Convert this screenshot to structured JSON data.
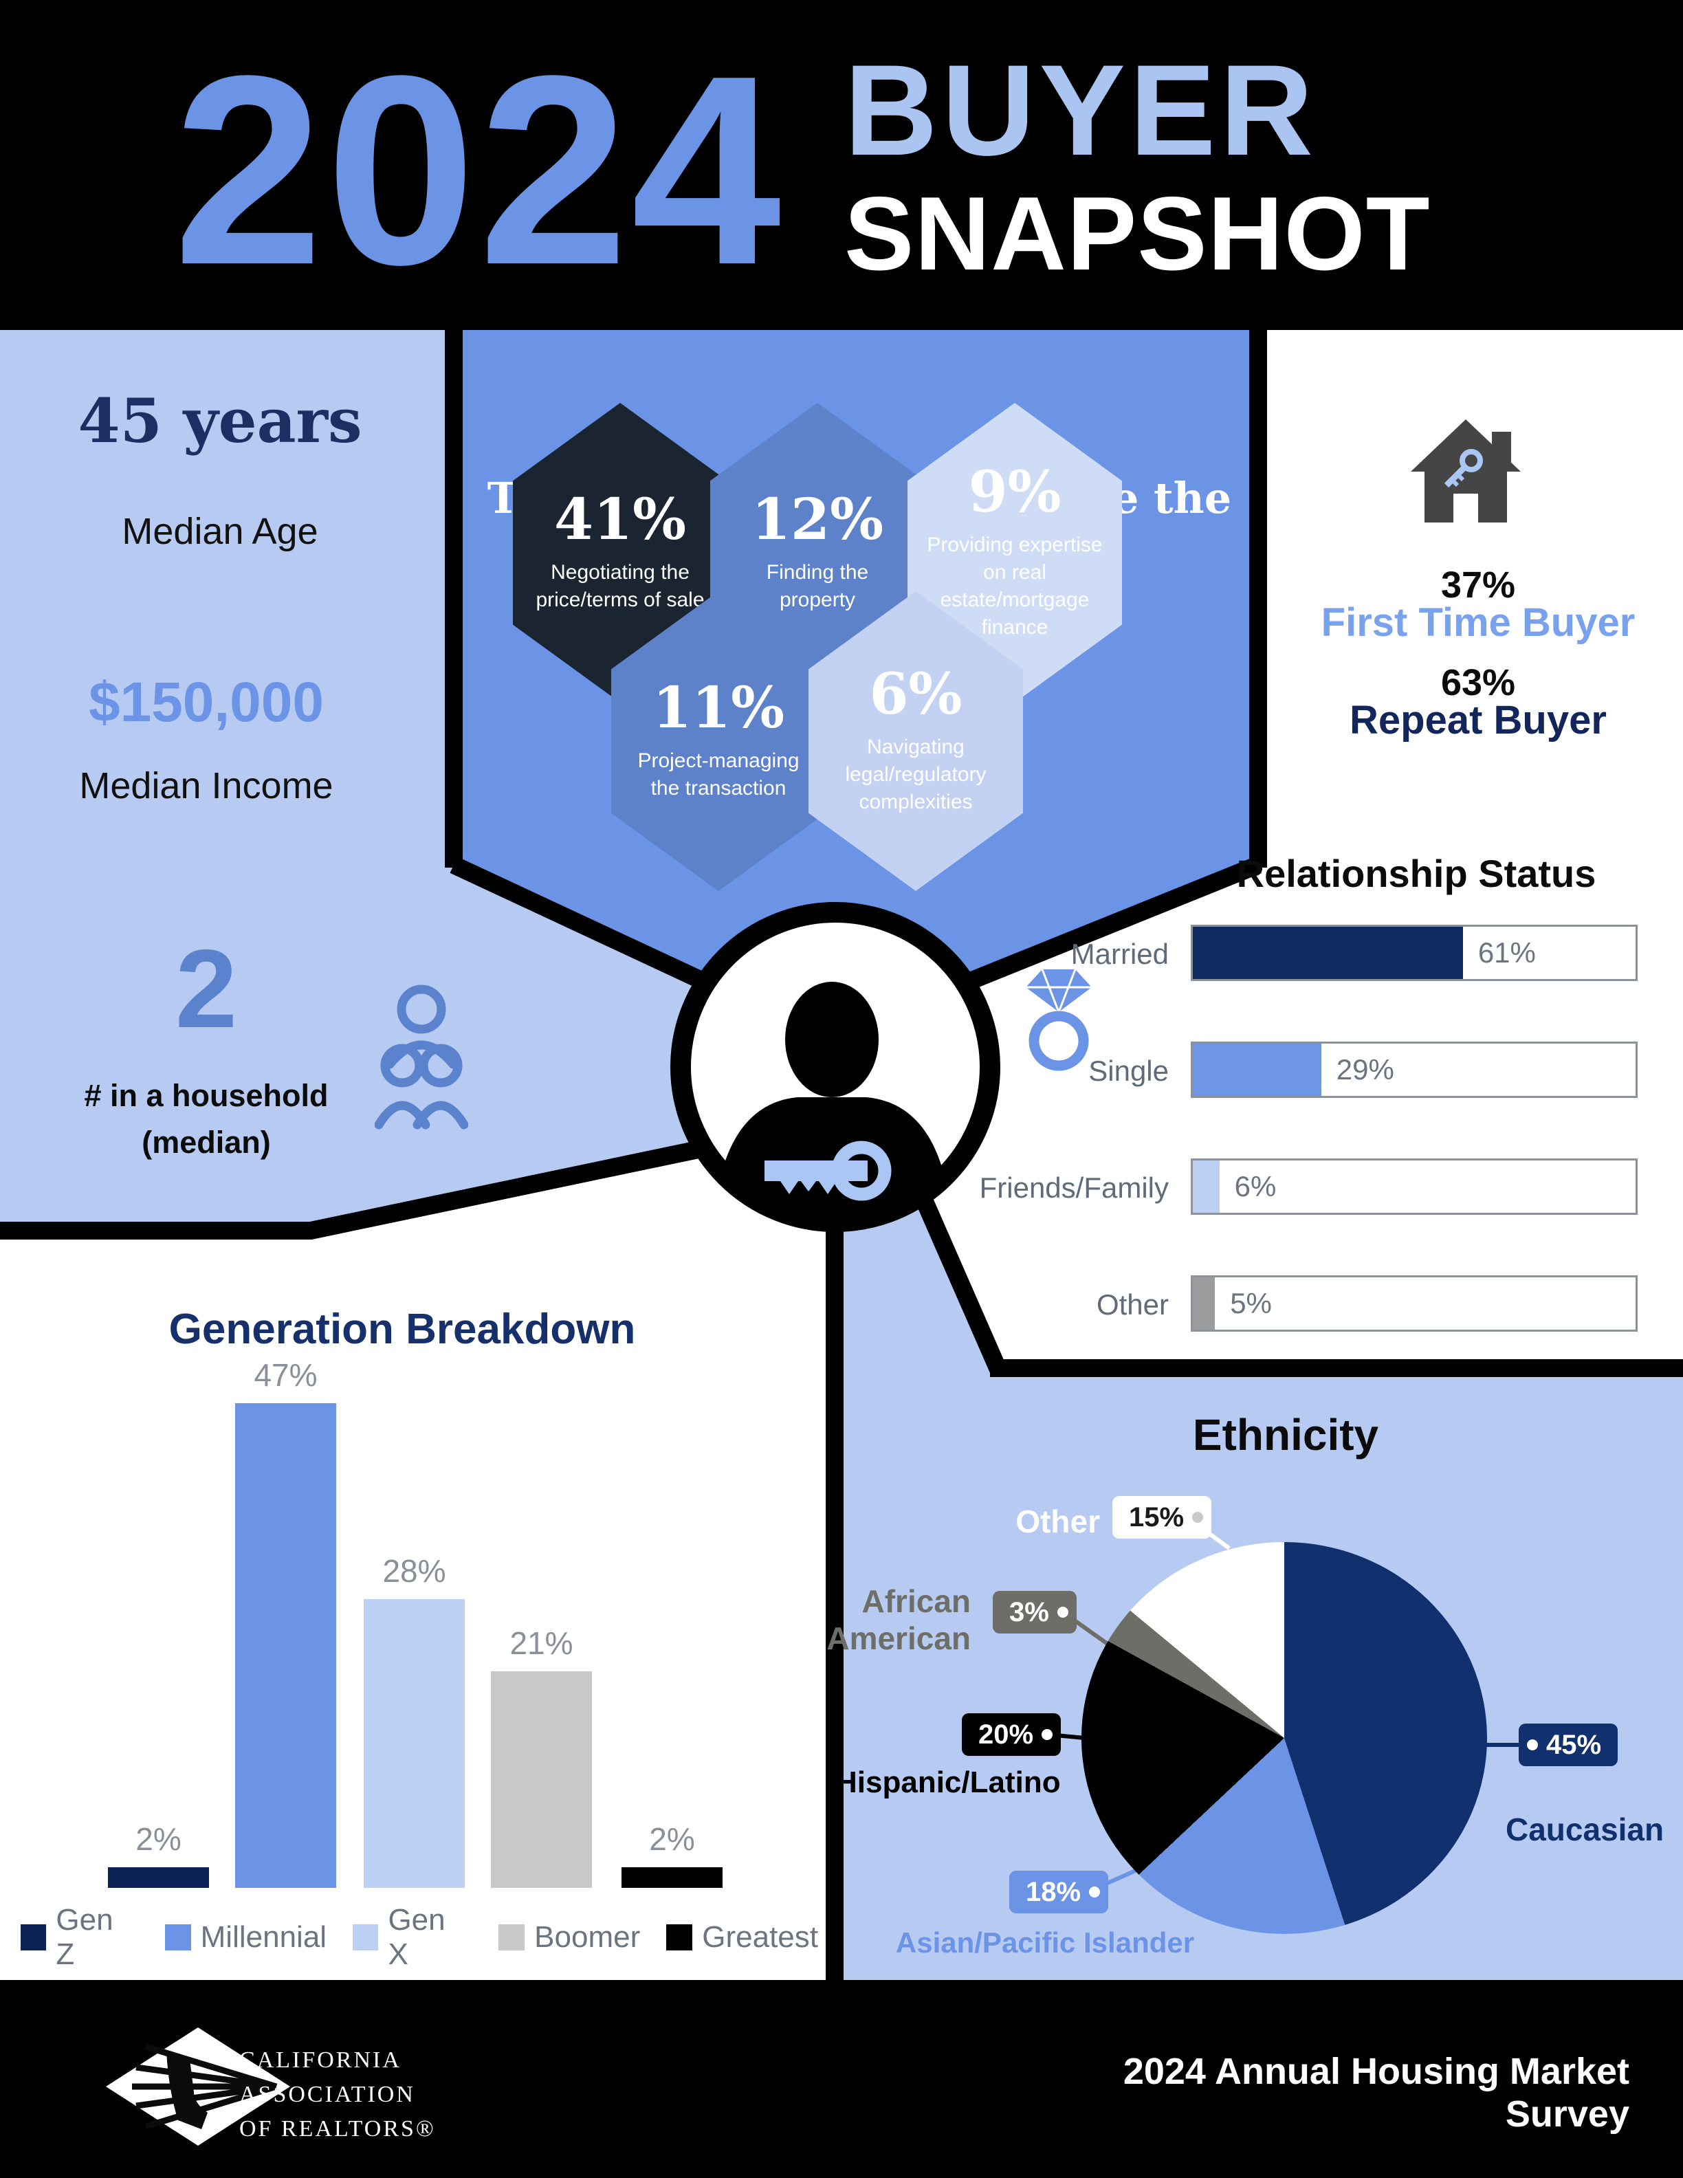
{
  "header": {
    "year": "2024",
    "title_line1": "BUYER",
    "title_line2": "SNAPSHOT"
  },
  "left_panel": {
    "median_age_value": "45 years",
    "median_age_label": "Median Age",
    "median_income_value": "$150,000",
    "median_income_label": "Median Income",
    "household_value": "2",
    "household_label_line1": "# in a household",
    "household_label_line2": "(median)"
  },
  "top_services": {
    "title": "Top 5 services buyers value the most",
    "items": [
      {
        "pct": "41%",
        "label": "Negotiating the price/terms of sale",
        "color": "#1b2532"
      },
      {
        "pct": "12%",
        "label": "Finding the property",
        "color": "#5d82ca"
      },
      {
        "pct": "9%",
        "label": "Providing expertise on real estate/mortgage finance",
        "color": "#cfdcf6"
      },
      {
        "pct": "11%",
        "label": "Project-managing the transaction",
        "color": "#5d82ca"
      },
      {
        "pct": "6%",
        "label": "Navigating legal/regulatory complexities",
        "color": "#c3d2f2"
      }
    ]
  },
  "buyer_type": {
    "first_time_pct": "37%",
    "first_time_label": "First Time Buyer",
    "repeat_pct": "63%",
    "repeat_label": "Repeat Buyer"
  },
  "footer": {
    "logo_line1": "CALIFORNIA",
    "logo_line2": "ASSOCIATION",
    "logo_line3": "OF REALTORS®",
    "survey": "2024 Annual Housing Market Survey"
  },
  "icons": [
    "family-icon",
    "ring-icon",
    "house-key-icon",
    "person-key-icon",
    "car-logo-icon"
  ],
  "colors": {
    "accent_mid_blue": "#6b94e7",
    "accent_light_blue": "#b7cbf2",
    "accent_pale_blue": "#abc5f2",
    "navy": "#0d2256",
    "black": "#000000",
    "gray": "#9c9c9c",
    "white": "#ffffff"
  },
  "chart_data": [
    {
      "id": "generation_breakdown",
      "type": "bar",
      "title": "Generation Breakdown",
      "categories": [
        "Gen Z",
        "Millennial",
        "Gen X",
        "Boomer",
        "Greatest"
      ],
      "values": [
        2,
        47,
        28,
        21,
        2
      ],
      "value_labels": [
        "2%",
        "47%",
        "28%",
        "21%",
        "2%"
      ],
      "colors": [
        "#0d2256",
        "#6b94e7",
        "#bdd0f4",
        "#c9c9c9",
        "#000000"
      ],
      "xlabel": "",
      "ylabel": "",
      "ylim": [
        0,
        50
      ],
      "grid": false,
      "legend_position": "bottom"
    },
    {
      "id": "relationship_status",
      "type": "bar",
      "orientation": "horizontal",
      "title": "Relationship Status",
      "categories": [
        "Married",
        "Single",
        "Friends/Family",
        "Other"
      ],
      "values": [
        61,
        29,
        6,
        5
      ],
      "value_labels": [
        "61%",
        "29%",
        "6%",
        "5%"
      ],
      "colors": [
        "#0e2a5e",
        "#6d96e8",
        "#bdd0f4",
        "#9c9c9c"
      ],
      "xlim": [
        0,
        100
      ],
      "grid": false
    },
    {
      "id": "ethnicity",
      "type": "pie",
      "title": "Ethnicity",
      "labels": [
        "Caucasian",
        "Asian/Pacific Islander",
        "Hispanic/Latino",
        "African American",
        "Other"
      ],
      "values": [
        45,
        18,
        20,
        3,
        15
      ],
      "value_labels": [
        "45%",
        "18%",
        "20%",
        "3%",
        "15%"
      ],
      "colors": [
        "#10306e",
        "#6b94e7",
        "#000000",
        "#6e6e68",
        "#ffffff"
      ],
      "start_angle_deg": 0,
      "direction": "clockwise"
    }
  ]
}
